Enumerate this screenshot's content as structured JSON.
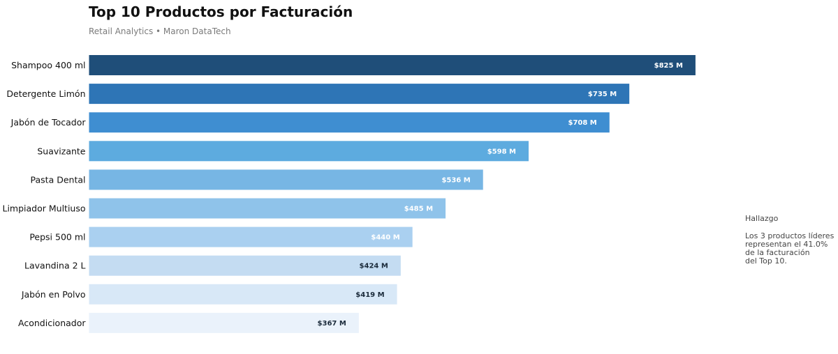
{
  "header": {
    "title": "Top 10 Productos por Facturación",
    "subtitle": "Retail Analytics • Maron DataTech"
  },
  "note": {
    "title": "Hallazgo",
    "lines": [
      "Los 3 productos líderes",
      "representan el 41.0%",
      "de la facturación",
      "del Top 10."
    ]
  },
  "chart_data": {
    "type": "bar",
    "orientation": "horizontal",
    "title": "Top 10 Productos por Facturación",
    "subtitle": "Retail Analytics • Maron DataTech",
    "xlabel": "",
    "ylabel": "",
    "xlim": [
      0,
      950
    ],
    "grid": false,
    "categories": [
      "Shampoo 400 ml",
      "Detergente Limón",
      "Jabón de Tocador",
      "Suavizante",
      "Pasta Dental",
      "Limpiador Multiuso",
      "Pepsi 500 ml",
      "Lavandina 2 L",
      "Jabón en Polvo",
      "Acondicionador"
    ],
    "values": [
      825,
      735,
      708,
      598,
      536,
      485,
      440,
      424,
      419,
      367
    ],
    "data_labels": [
      "$825 M",
      "$735 M",
      "$708 M",
      "$598 M",
      "$536 M",
      "$485 M",
      "$440 M",
      "$424 M",
      "$419 M",
      "$367 M"
    ],
    "colors": [
      "#1f4e79",
      "#2e75b6",
      "#3f8ed1",
      "#5dabdf",
      "#77b6e4",
      "#8fc3ea",
      "#aad0f0",
      "#c4dcf2",
      "#d8e8f7",
      "#eaf2fb"
    ],
    "label_colors": [
      "#ffffff",
      "#ffffff",
      "#ffffff",
      "#ffffff",
      "#ffffff",
      "#ffffff",
      "#ffffff",
      "#1a2a3a",
      "#1a2a3a",
      "#1a2a3a"
    ]
  }
}
